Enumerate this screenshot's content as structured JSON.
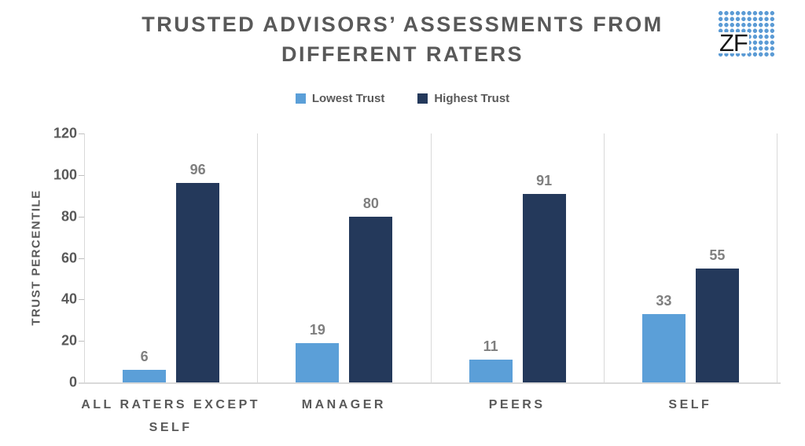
{
  "logo": {
    "text": "ZF",
    "dot_color": "#5B9BD5"
  },
  "chart_data": {
    "type": "bar",
    "title": "TRUSTED ADVISORS’ ASSESSMENTS FROM DIFFERENT RATERS",
    "categories": [
      "ALL RATERS EXCEPT SELF",
      "MANAGER",
      "PEERS",
      "SELF"
    ],
    "series": [
      {
        "name": "Lowest Trust",
        "color": "#5B9FD8",
        "values": [
          6,
          19,
          11,
          33
        ]
      },
      {
        "name": "Highest Trust",
        "color": "#24395B",
        "values": [
          96,
          80,
          91,
          55
        ]
      }
    ],
    "xlabel": "",
    "ylabel": "TRUST PERCENTILE",
    "ylim": [
      0,
      120
    ],
    "yticks": [
      0,
      20,
      40,
      60,
      80,
      100,
      120
    ],
    "grid": false,
    "panel_separators": true,
    "legend_position": "top",
    "data_labels": true
  },
  "colors": {
    "heading_text": "#595959",
    "data_label_text": "#7F7F7F",
    "axis_line": "#D9D9D9",
    "tick_mark": "#BFBFBF"
  }
}
